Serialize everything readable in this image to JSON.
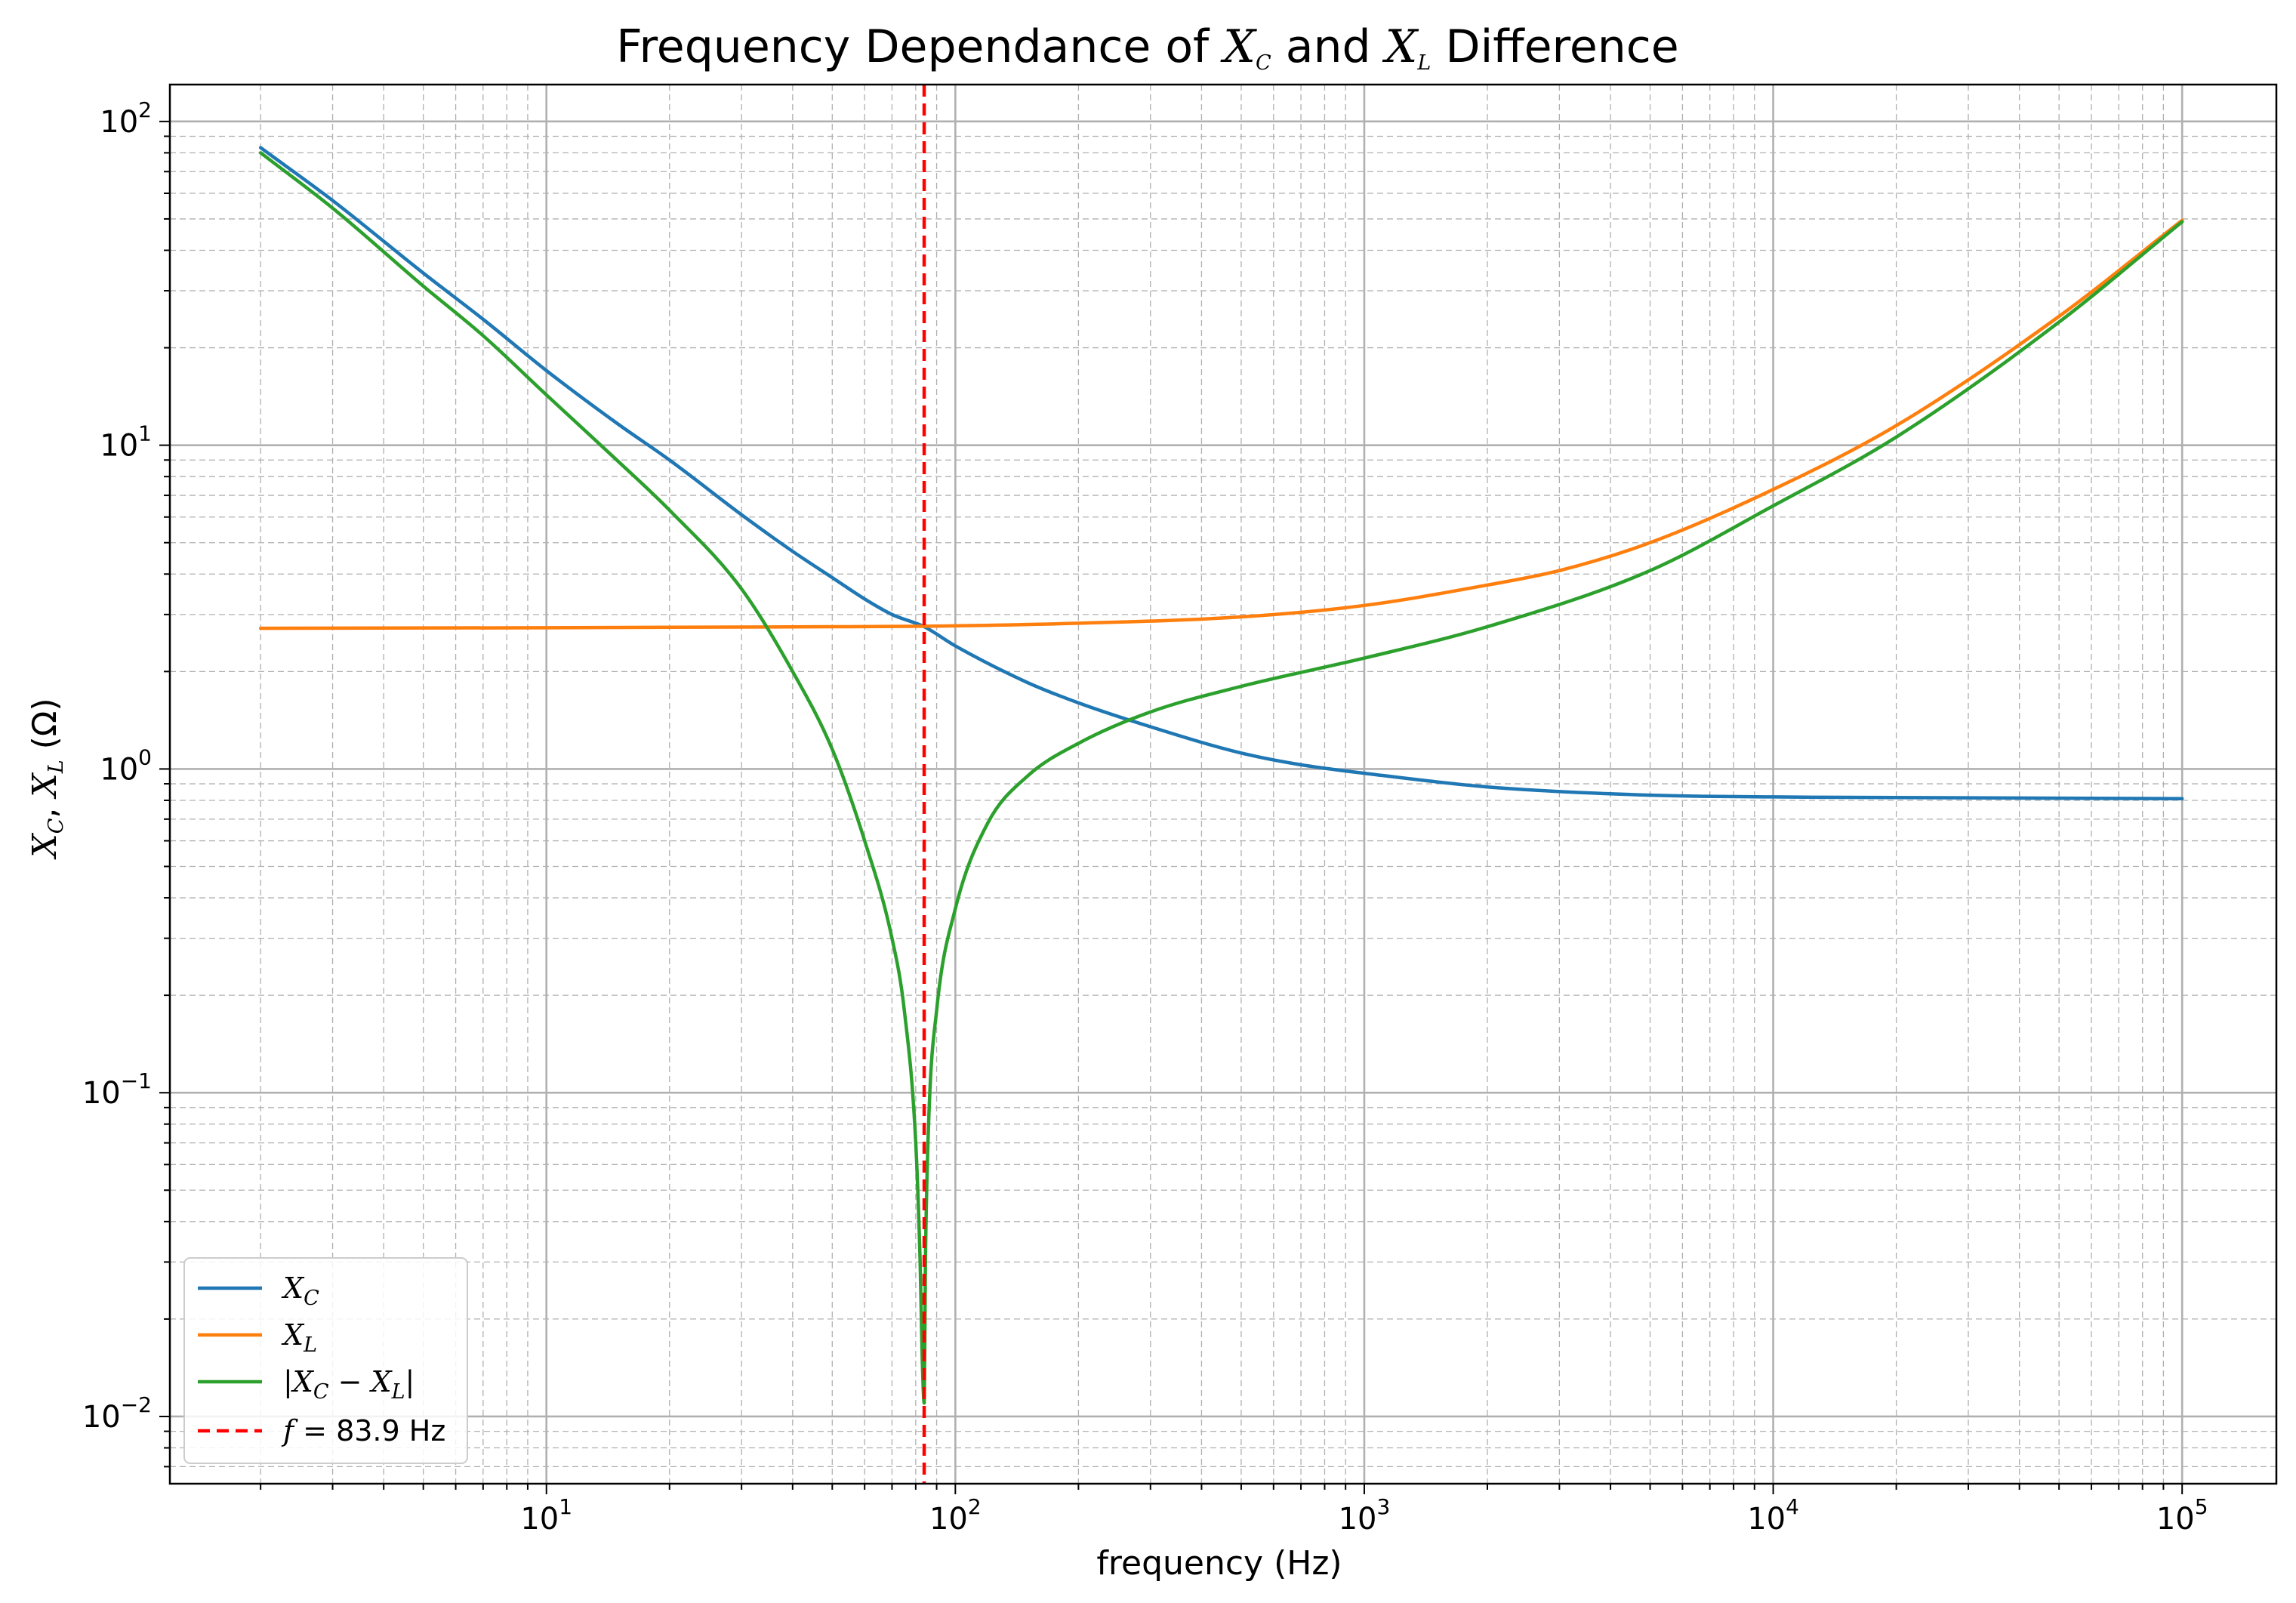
{
  "chart_data": {
    "type": "line",
    "title": "Frequency Dependance of X_C and X_L Difference",
    "xlabel": "frequency (Hz)",
    "ylabel": "X_C, X_L (Ω)",
    "xscale": "log",
    "yscale": "log",
    "xlim": [
      1.2,
      170000
    ],
    "ylim": [
      0.0062,
      130
    ],
    "x_ticks": [
      {
        "base": "10",
        "exp": "1",
        "value": 10
      },
      {
        "base": "10",
        "exp": "2",
        "value": 100
      },
      {
        "base": "10",
        "exp": "3",
        "value": 1000
      },
      {
        "base": "10",
        "exp": "4",
        "value": 10000
      },
      {
        "base": "10",
        "exp": "5",
        "value": 100000
      }
    ],
    "y_ticks": [
      {
        "base": "10",
        "exp": "−2",
        "value": 0.01
      },
      {
        "base": "10",
        "exp": "−1",
        "value": 0.1
      },
      {
        "base": "10",
        "exp": "0",
        "value": 1
      },
      {
        "base": "10",
        "exp": "1",
        "value": 10
      },
      {
        "base": "10",
        "exp": "2",
        "value": 100
      }
    ],
    "grid": true,
    "legend_position": "lower-left",
    "series": [
      {
        "name": "X_C",
        "color": "#1f77b4",
        "x": [
          2,
          3,
          5,
          7,
          10,
          15,
          20,
          30,
          40,
          50,
          60,
          70,
          83.9,
          100,
          150,
          200,
          300,
          500,
          700,
          1000,
          2000,
          5000,
          10000,
          100000
        ],
        "y": [
          83,
          57,
          34,
          24.5,
          17,
          11.6,
          9,
          6.1,
          4.7,
          3.9,
          3.35,
          3.0,
          2.75,
          2.4,
          1.85,
          1.6,
          1.35,
          1.12,
          1.03,
          0.97,
          0.88,
          0.83,
          0.82,
          0.81
        ]
      },
      {
        "name": "X_L",
        "color": "#ff7f0e",
        "x": [
          2,
          10,
          50,
          83.9,
          200,
          500,
          1000,
          2000,
          3000,
          5000,
          10000,
          20000,
          50000,
          100000
        ],
        "y": [
          2.72,
          2.73,
          2.75,
          2.76,
          2.82,
          2.95,
          3.2,
          3.7,
          4.1,
          5.0,
          7.3,
          11.5,
          25,
          49.5
        ]
      },
      {
        "name": "|X_C − X_L|",
        "color": "#2ca02c",
        "x": [
          2,
          3,
          5,
          7,
          10,
          15,
          20,
          30,
          40,
          50,
          60,
          70,
          75,
          80,
          82,
          83,
          83.9,
          84.5,
          86,
          90,
          100,
          120,
          150,
          200,
          300,
          500,
          1000,
          2000,
          5000,
          10000,
          20000,
          50000,
          100000
        ],
        "y": [
          80,
          54,
          31,
          21.8,
          14.3,
          8.9,
          6.3,
          3.6,
          2.0,
          1.15,
          0.6,
          0.3,
          0.18,
          0.07,
          0.03,
          0.015,
          0.011,
          0.03,
          0.08,
          0.18,
          0.37,
          0.68,
          0.95,
          1.2,
          1.5,
          1.8,
          2.2,
          2.75,
          4.1,
          6.5,
          10.6,
          24,
          49
        ]
      },
      {
        "name": "f = 83.9 Hz",
        "color": "#ff0000",
        "style": "dashed",
        "x_value": 83.9
      }
    ]
  }
}
